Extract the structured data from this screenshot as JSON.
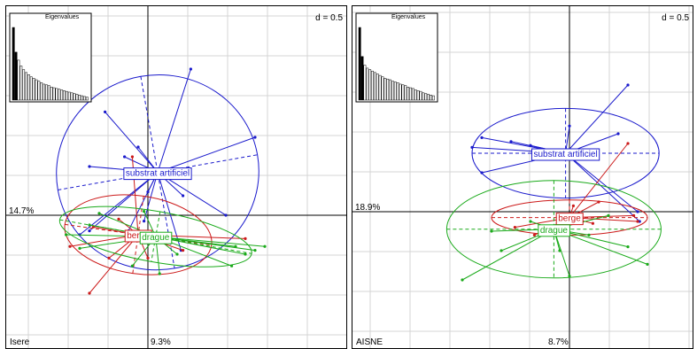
{
  "chart_data": [
    {
      "type": "scatter",
      "subtype": "between-class PCA / s.class plot",
      "grid": true,
      "d_label": "d = 0.5",
      "eigen_title": "Eigenvalues",
      "site": "Isere",
      "axis1_pct": "9.3%",
      "axis2_pct": "14.7%",
      "eigenvalues": [
        1.0,
        0.66,
        0.55,
        0.47,
        0.42,
        0.38,
        0.35,
        0.32,
        0.3,
        0.28,
        0.26,
        0.24,
        0.22,
        0.21,
        0.2,
        0.18,
        0.17,
        0.16,
        0.15,
        0.14,
        0.13,
        0.12,
        0.11,
        0.1,
        0.09,
        0.08,
        0.07,
        0.06,
        0.05,
        0.04
      ],
      "groups": [
        {
          "name": "substrat artificiel",
          "color": "#1a1acc",
          "center": [
            0.05,
            0.22
          ],
          "ellipse": {
            "rx": 0.52,
            "ry": 0.5,
            "angle": 10
          },
          "points": [
            [
              0.22,
              0.75
            ],
            [
              -0.22,
              0.53
            ],
            [
              0.55,
              0.4
            ],
            [
              -0.05,
              0.35
            ],
            [
              -0.12,
              0.3
            ],
            [
              -0.3,
              0.25
            ],
            [
              0.0,
              0.12
            ],
            [
              0.18,
              0.1
            ],
            [
              0.4,
              0.0
            ],
            [
              -0.3,
              -0.08
            ],
            [
              -0.1,
              -0.08
            ],
            [
              -0.35,
              -0.1
            ],
            [
              0.17,
              -0.18
            ],
            [
              -0.02,
              -0.03
            ]
          ]
        },
        {
          "name": "berge",
          "color": "#cc1a1a",
          "center": [
            -0.05,
            -0.1
          ],
          "ellipse": {
            "rx": 0.38,
            "ry": 0.2,
            "angle": -8
          },
          "points": [
            [
              -0.08,
              0.3
            ],
            [
              -0.28,
              -0.06
            ],
            [
              -0.4,
              -0.16
            ],
            [
              0.05,
              -0.13
            ],
            [
              0.5,
              -0.12
            ],
            [
              0.18,
              -0.18
            ],
            [
              -0.2,
              -0.22
            ],
            [
              -0.3,
              -0.4
            ],
            [
              0.0,
              -0.22
            ],
            [
              -0.15,
              -0.02
            ]
          ]
        },
        {
          "name": "drague",
          "color": "#1aaa1a",
          "center": [
            0.04,
            -0.11
          ],
          "ellipse": {
            "rx": 0.5,
            "ry": 0.13,
            "angle": -10
          },
          "points": [
            [
              0.55,
              -0.18
            ],
            [
              0.6,
              -0.16
            ],
            [
              0.43,
              -0.26
            ],
            [
              -0.3,
              -0.05
            ],
            [
              -0.42,
              -0.1
            ],
            [
              0.15,
              -0.2
            ],
            [
              -0.08,
              -0.26
            ],
            [
              -0.25,
              0.01
            ],
            [
              -0.02,
              0.02
            ],
            [
              0.45,
              -0.16
            ],
            [
              0.5,
              -0.2
            ],
            [
              0.06,
              -0.3
            ],
            [
              -0.35,
              -0.17
            ]
          ]
        }
      ]
    },
    {
      "type": "scatter",
      "subtype": "between-class PCA / s.class plot",
      "grid": true,
      "d_label": "d = 0.5",
      "eigen_title": "Eigenvalues",
      "site": "AISNE",
      "axis1_pct": "8.7%",
      "axis2_pct": "18.9%",
      "eigenvalues": [
        1.0,
        0.6,
        0.48,
        0.44,
        0.42,
        0.4,
        0.38,
        0.36,
        0.34,
        0.32,
        0.3,
        0.29,
        0.28,
        0.26,
        0.25,
        0.24,
        0.22,
        0.21,
        0.2,
        0.18,
        0.17,
        0.16,
        0.14,
        0.13,
        0.12,
        0.1,
        0.09,
        0.08,
        0.07,
        0.06
      ],
      "groups": [
        {
          "name": "substrat artificiel",
          "color": "#1a1acc",
          "center": [
            -0.02,
            0.3
          ],
          "ellipse": {
            "rx": 0.48,
            "ry": 0.23,
            "angle": 0
          },
          "points": [
            [
              0.3,
              0.65
            ],
            [
              -0.45,
              0.38
            ],
            [
              -0.5,
              0.33
            ],
            [
              0.25,
              0.4
            ],
            [
              -0.2,
              0.34
            ],
            [
              -0.3,
              0.36
            ],
            [
              -0.45,
              0.2
            ],
            [
              0.0,
              0.44
            ],
            [
              -0.18,
              0.29
            ],
            [
              0.35,
              0.0
            ],
            [
              0.36,
              -0.05
            ]
          ]
        },
        {
          "name": "berge",
          "color": "#cc1a1a",
          "center": [
            0.0,
            -0.03
          ],
          "ellipse": {
            "rx": 0.4,
            "ry": 0.09,
            "angle": 0
          },
          "points": [
            [
              0.3,
              0.35
            ],
            [
              0.35,
              -0.05
            ],
            [
              0.33,
              -0.02
            ],
            [
              -0.28,
              -0.08
            ],
            [
              0.02,
              0.03
            ],
            [
              -0.18,
              -0.12
            ],
            [
              0.12,
              -0.06
            ],
            [
              -0.05,
              -0.1
            ],
            [
              0.15,
              0.05
            ]
          ]
        },
        {
          "name": "drague",
          "color": "#1aaa1a",
          "center": [
            -0.08,
            -0.09
          ],
          "ellipse": {
            "rx": 0.55,
            "ry": 0.25,
            "angle": 0
          },
          "points": [
            [
              -0.55,
              -0.35
            ],
            [
              -0.35,
              -0.2
            ],
            [
              -0.4,
              -0.1
            ],
            [
              0.0,
              -0.33
            ],
            [
              0.4,
              -0.27
            ],
            [
              0.3,
              -0.18
            ],
            [
              0.1,
              -0.12
            ],
            [
              -0.2,
              -0.05
            ],
            [
              -0.05,
              -0.2
            ],
            [
              0.2,
              -0.02
            ]
          ]
        }
      ]
    }
  ]
}
